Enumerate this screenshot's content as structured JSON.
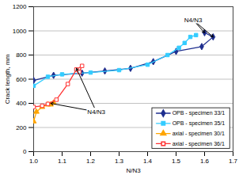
{
  "chart_data": {
    "type": "line",
    "x_label": "N/N3",
    "y_label": "Crack length, mm",
    "xlim": [
      1.0,
      1.7
    ],
    "xticks": [
      {
        "value": 1.0,
        "label": "1.0"
      },
      1.1,
      1.2,
      1.3,
      1.4,
      1.5,
      1.6,
      1.7
    ],
    "ylim": [
      0,
      1200
    ],
    "yticks": [
      0,
      200,
      400,
      600,
      800,
      1000,
      1200
    ],
    "grid": true,
    "legend": "bottom-right",
    "series": [
      {
        "name": "OPB - specimen 33/1",
        "color": "#1f2f8f",
        "marker": "diamond",
        "x": [
          1.0,
          1.07,
          1.17,
          1.25,
          1.34,
          1.42,
          1.5,
          1.59,
          1.63,
          1.6
        ],
        "values": [
          590,
          632,
          650,
          668,
          690,
          745,
          830,
          870,
          950,
          985
        ]
      },
      {
        "name": "OPB - specimen 35/1",
        "color": "#33ccff",
        "marker": "square",
        "x": [
          1.0,
          1.05,
          1.1,
          1.2,
          1.3,
          1.4,
          1.47,
          1.51,
          1.53,
          1.55,
          1.57
        ],
        "values": [
          545,
          620,
          640,
          655,
          675,
          720,
          800,
          860,
          900,
          950,
          965
        ]
      },
      {
        "name": "axial - specimen 30/1",
        "color": "#ffa500",
        "marker": "triangle",
        "x": [
          1.0,
          1.01,
          1.03,
          1.05,
          1.07,
          1.06
        ],
        "values": [
          250,
          330,
          370,
          390,
          405,
          390
        ]
      },
      {
        "name": "axial - specimen 36/1",
        "color": "#ff3333",
        "marker": "square_open",
        "x": [
          1.0,
          1.03,
          1.05,
          1.08,
          1.12,
          1.15,
          1.17,
          1.16
        ],
        "values": [
          370,
          380,
          395,
          430,
          560,
          680,
          710,
          660
        ]
      }
    ],
    "annotations": [
      {
        "text": "N4/N3",
        "x": 1.56,
        "y": 1090,
        "targets": [
          [
            1.63,
            950
          ],
          [
            1.6,
            985
          ]
        ]
      },
      {
        "text": "N4/N3",
        "x": 1.22,
        "y": 330,
        "targets": [
          [
            1.06,
            400
          ],
          [
            1.15,
            690
          ]
        ]
      }
    ]
  }
}
